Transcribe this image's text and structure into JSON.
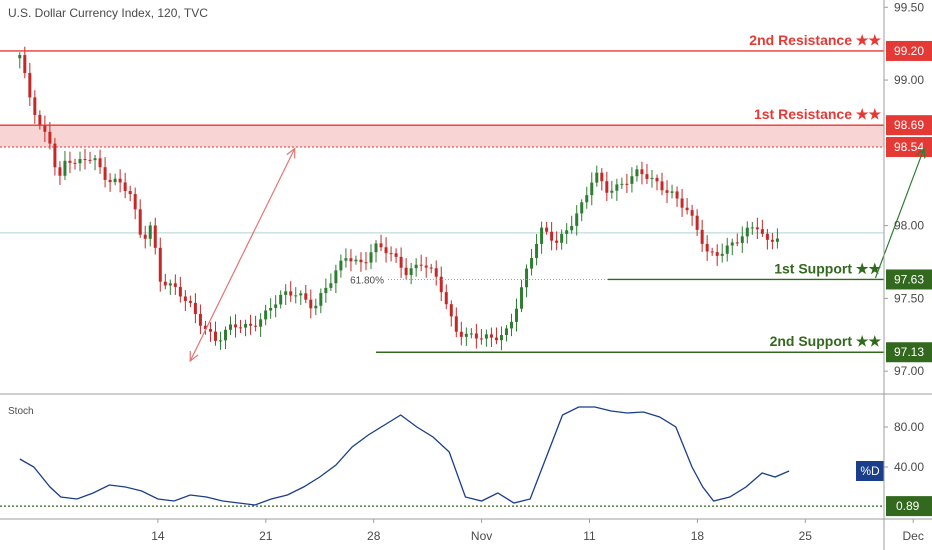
{
  "chart_data": {
    "type": "candlestick",
    "title": "U.S. Dollar Currency Index, 120, TVC",
    "colors": {
      "up": "#2e7d32",
      "down": "#c62828",
      "resistance": "#e53935",
      "support": "#33691e",
      "stoch": "#1a3e8c",
      "zone": "#f5c6c6"
    },
    "price_axis": {
      "min": 96.85,
      "max": 99.55,
      "ticks": [
        "99.50",
        "99.00",
        "98.00",
        "97.50",
        "97.00"
      ]
    },
    "x_axis": {
      "ticks": [
        {
          "label": "14",
          "t": 1.0
        },
        {
          "label": "21",
          "t": 2.0
        },
        {
          "label": "28",
          "t": 3.0
        },
        {
          "label": "Nov",
          "t": 4.0
        },
        {
          "label": "11",
          "t": 5.0
        },
        {
          "label": "18",
          "t": 6.0
        },
        {
          "label": "25",
          "t": 7.0
        },
        {
          "label": "Dec",
          "t": 8.0
        }
      ]
    },
    "levels": [
      {
        "name": "2nd Resistance ★★",
        "value": 99.2,
        "label": "99.20",
        "kind": "resistance"
      },
      {
        "name": "1st Resistance ★★",
        "value": 98.69,
        "label": "98.69",
        "kind": "resistance"
      },
      {
        "name": "",
        "value": 98.54,
        "label": "98.54",
        "kind": "resistance-dashed"
      },
      {
        "name": "1st Support ★★",
        "value": 97.63,
        "label": "97.63",
        "kind": "support"
      },
      {
        "name": "2nd Support ★★",
        "value": 97.13,
        "label": "97.13",
        "kind": "support"
      }
    ],
    "resistance_zone": {
      "low": 98.54,
      "high": 98.69
    },
    "fib_label": "61.80%",
    "fib_level": 97.63,
    "price_path": [
      [
        -0.28,
        99.15
      ],
      [
        -0.2,
        98.9
      ],
      [
        -0.1,
        98.7
      ],
      [
        0.0,
        98.6
      ],
      [
        0.08,
        98.3
      ],
      [
        0.15,
        98.45
      ],
      [
        0.25,
        98.4
      ],
      [
        0.4,
        98.5
      ],
      [
        0.5,
        98.35
      ],
      [
        0.6,
        98.3
      ],
      [
        0.75,
        98.2
      ],
      [
        0.85,
        97.9
      ],
      [
        0.95,
        98.05
      ],
      [
        1.0,
        97.65
      ],
      [
        1.15,
        97.55
      ],
      [
        1.3,
        97.45
      ],
      [
        1.45,
        97.3
      ],
      [
        1.55,
        97.2
      ],
      [
        1.7,
        97.3
      ],
      [
        1.85,
        97.32
      ],
      [
        2.0,
        97.4
      ],
      [
        2.15,
        97.5
      ],
      [
        2.3,
        97.55
      ],
      [
        2.45,
        97.45
      ],
      [
        2.6,
        97.6
      ],
      [
        2.75,
        97.8
      ],
      [
        2.9,
        97.75
      ],
      [
        3.0,
        97.85
      ],
      [
        3.15,
        97.8
      ],
      [
        3.3,
        97.7
      ],
      [
        3.45,
        97.75
      ],
      [
        3.6,
        97.6
      ],
      [
        3.75,
        97.3
      ],
      [
        3.9,
        97.25
      ],
      [
        4.0,
        97.22
      ],
      [
        4.1,
        97.2
      ],
      [
        4.25,
        97.3
      ],
      [
        4.4,
        97.65
      ],
      [
        4.55,
        97.95
      ],
      [
        4.7,
        97.9
      ],
      [
        4.85,
        98.05
      ],
      [
        4.95,
        98.15
      ],
      [
        5.05,
        98.35
      ],
      [
        5.15,
        98.25
      ],
      [
        5.3,
        98.3
      ],
      [
        5.45,
        98.35
      ],
      [
        5.6,
        98.3
      ],
      [
        5.75,
        98.25
      ],
      [
        5.9,
        98.1
      ],
      [
        6.0,
        97.95
      ],
      [
        6.1,
        97.8
      ],
      [
        6.25,
        97.85
      ],
      [
        6.4,
        97.9
      ],
      [
        6.55,
        98.0
      ],
      [
        6.65,
        97.9
      ],
      [
        6.75,
        97.95
      ]
    ],
    "arrows": [
      {
        "from": [
          1.8,
          97.07
        ],
        "to": [
          2.88,
          98.53
        ],
        "color": "#e57373"
      },
      {
        "from": [
          7.65,
          97.64
        ],
        "to": [
          8.1,
          98.53
        ],
        "color": "#2e7d32"
      }
    ],
    "stoch": {
      "label": "Stoch",
      "axis_ticks": [
        "80.00",
        "40.00"
      ],
      "current_tag": "%D",
      "current_value": 36,
      "floor_tag": "0.89",
      "floor_value": 0.89,
      "min": 0,
      "max": 100,
      "values": [
        [
          -0.28,
          48
        ],
        [
          -0.15,
          40
        ],
        [
          0.0,
          20
        ],
        [
          0.1,
          10
        ],
        [
          0.25,
          8
        ],
        [
          0.4,
          14
        ],
        [
          0.55,
          22
        ],
        [
          0.7,
          20
        ],
        [
          0.85,
          16
        ],
        [
          1.0,
          8
        ],
        [
          1.15,
          6
        ],
        [
          1.3,
          12
        ],
        [
          1.45,
          10
        ],
        [
          1.6,
          6
        ],
        [
          1.75,
          4
        ],
        [
          1.9,
          2
        ],
        [
          2.05,
          8
        ],
        [
          2.2,
          12
        ],
        [
          2.35,
          20
        ],
        [
          2.5,
          30
        ],
        [
          2.65,
          42
        ],
        [
          2.8,
          60
        ],
        [
          2.95,
          72
        ],
        [
          3.1,
          82
        ],
        [
          3.25,
          92
        ],
        [
          3.4,
          80
        ],
        [
          3.55,
          70
        ],
        [
          3.7,
          55
        ],
        [
          3.85,
          10
        ],
        [
          4.0,
          6
        ],
        [
          4.15,
          14
        ],
        [
          4.3,
          4
        ],
        [
          4.45,
          8
        ],
        [
          4.6,
          50
        ],
        [
          4.75,
          92
        ],
        [
          4.9,
          100
        ],
        [
          5.05,
          100
        ],
        [
          5.2,
          96
        ],
        [
          5.35,
          94
        ],
        [
          5.5,
          95
        ],
        [
          5.65,
          90
        ],
        [
          5.8,
          80
        ],
        [
          5.95,
          40
        ],
        [
          6.05,
          20
        ],
        [
          6.15,
          6
        ],
        [
          6.3,
          10
        ],
        [
          6.45,
          20
        ],
        [
          6.6,
          34
        ],
        [
          6.72,
          30
        ],
        [
          6.85,
          36
        ]
      ]
    }
  }
}
